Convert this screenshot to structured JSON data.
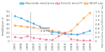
{
  "chart_data": {
    "type": "line",
    "y_label": "Resistance %",
    "y2_label": "DHL use packages/1000 inhabitants/day",
    "x": [
      1997,
      1998,
      1999,
      2000,
      2001,
      2002,
      2003,
      2004,
      2005,
      2006,
      2007,
      2008,
      2009
    ],
    "xlim": [
      1996.5,
      2009.5
    ],
    "xticks": [
      1997,
      1998,
      1999,
      2000,
      2001,
      2002,
      2003,
      2004,
      2005,
      2006,
      2007,
      2008,
      2009
    ],
    "ylim": [
      0,
      70
    ],
    "yticks": [
      0,
      10,
      20,
      30,
      40,
      50,
      60,
      70
    ],
    "y2lim": [
      0,
      1.4
    ],
    "y2ticks": [
      0,
      0.2,
      0.4,
      0.6,
      0.8,
      {
        "value": 1.0,
        "label": "1.0"
      },
      1.2,
      1.4
    ],
    "grid": false,
    "legend": "upper right",
    "series": [
      {
        "name": "Macrolide resistance",
        "values": [
          60,
          55,
          48,
          42,
          35,
          28,
          22,
          20,
          18,
          17,
          16,
          20,
          25
        ],
        "marker": "square",
        "line_style": "solid"
      },
      {
        "name": "Erm(A)-emm77",
        "values": [
          10,
          8,
          12,
          8,
          6,
          4,
          3,
          12,
          20,
          5,
          3,
          2,
          2
        ],
        "marker": "square",
        "line_style": "dashed"
      },
      {
        "name": "MLST use",
        "values": [
          0.75,
          0.72,
          0.68,
          0.65,
          0.6,
          0.55,
          0.5,
          0.45,
          0.4,
          0.5,
          0.8,
          1.1,
          1.35
        ],
        "axis": "y2",
        "marker": "circle",
        "line_style": "solid"
      }
    ],
    "vlines": [
      1999.5
    ],
    "hlines": [
      {
        "value": 0.32,
        "axis": "y2"
      }
    ],
    "annotations": [
      {
        "text": "Threshold\n0.32 PID",
        "x": 2003,
        "y": 0.32,
        "axis": "y2"
      }
    ]
  }
}
